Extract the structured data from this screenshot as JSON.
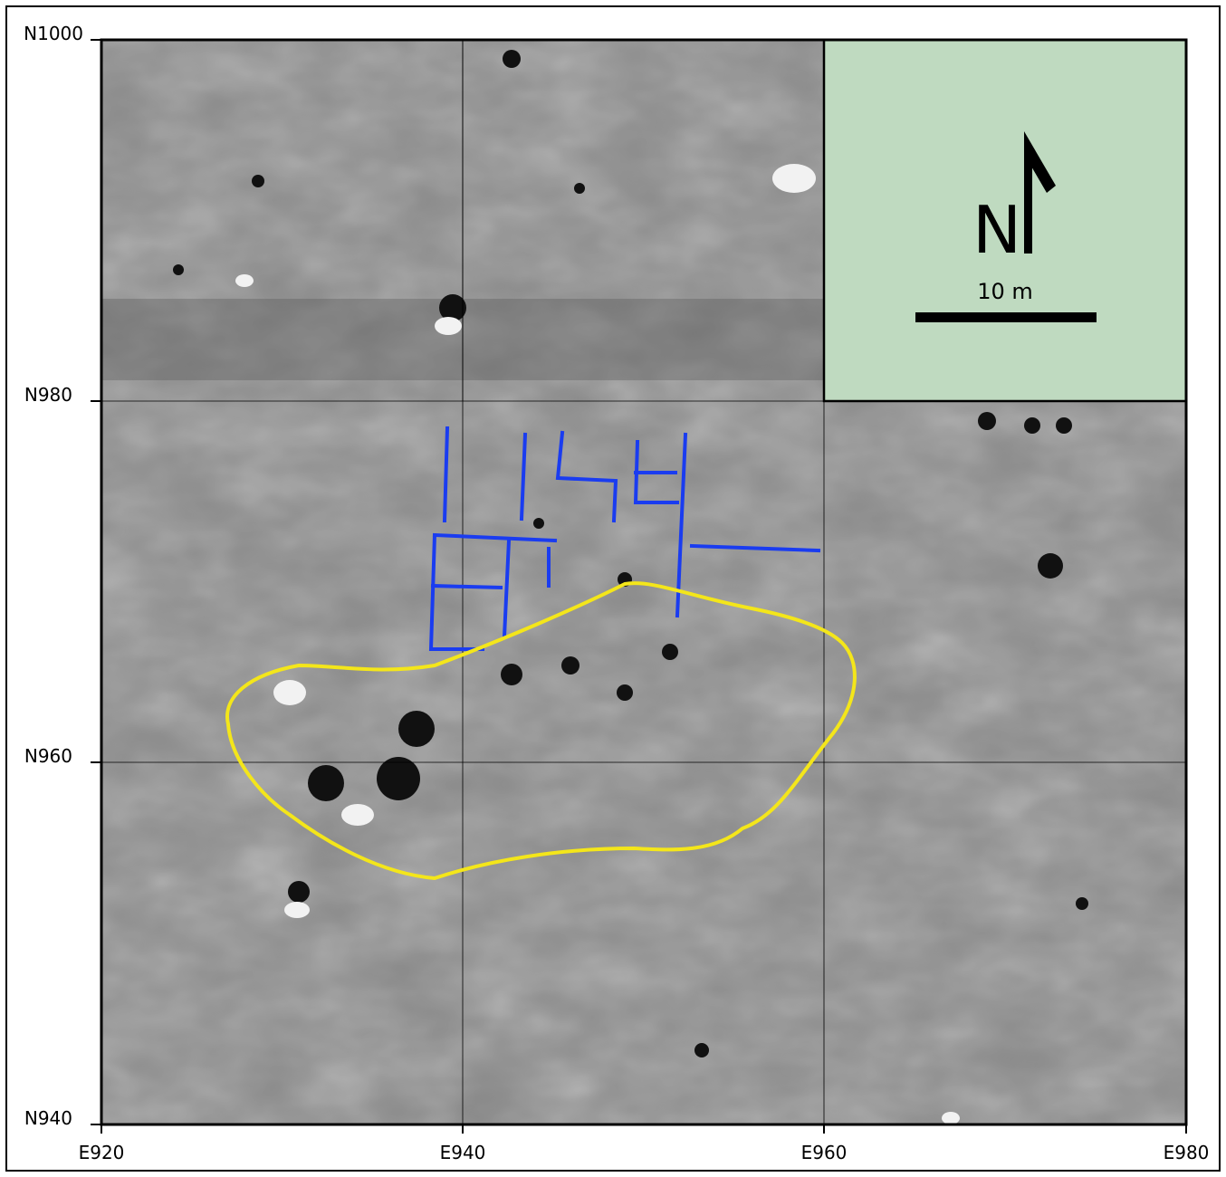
{
  "grid": {
    "northings": [
      "N1000",
      "N980",
      "N960",
      "N940"
    ],
    "eastings": [
      "E920",
      "E940",
      "E960",
      "E980"
    ]
  },
  "legend": {
    "north": "N",
    "scale": "10 m"
  }
}
